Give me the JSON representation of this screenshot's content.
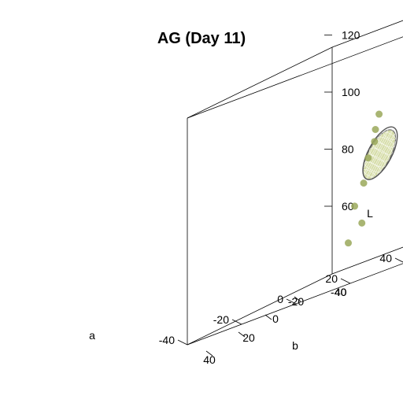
{
  "chart_data": {
    "type": "scatter",
    "subtype": "3d-scatter-with-ellipsoid",
    "title": "AG (Day 11)",
    "axes": {
      "a": {
        "label": "a",
        "range": [
          -40,
          40
        ],
        "ticks": [
          -40,
          -20,
          0,
          20,
          40
        ],
        "tick_labels": [
          "-40",
          "-20",
          "0",
          "20",
          "40"
        ]
      },
      "b": {
        "label": "b",
        "range": [
          -40,
          40
        ],
        "ticks": [
          -20,
          0,
          20,
          40
        ],
        "tick_labels": [
          "-20",
          "0",
          "20",
          "40"
        ],
        "corner_label": "-40"
      },
      "L": {
        "label": "L",
        "range": [
          40,
          120
        ],
        "ticks": [
          60,
          80,
          100,
          120
        ],
        "tick_labels": [
          "60",
          "80",
          "100",
          "120"
        ],
        "corner_label": "40"
      }
    },
    "series": [
      {
        "points": [
          {
            "a": -2,
            "b": -2,
            "L": 52
          },
          {
            "a": 1,
            "b": 1,
            "L": 57
          },
          {
            "a": -1,
            "b": 0,
            "L": 64
          },
          {
            "a": 3,
            "b": -1,
            "L": 71
          },
          {
            "a": 2,
            "b": 3,
            "L": 79
          },
          {
            "a": 5,
            "b": 2,
            "L": 84
          },
          {
            "a": 4,
            "b": 4,
            "L": 88
          },
          {
            "a": 6,
            "b": 3,
            "L": 93
          }
        ],
        "color": "#9aa85a"
      }
    ],
    "ellipsoid": {
      "center": {
        "a": 3,
        "b": 2,
        "L": 79
      },
      "fill": "#c8d28c",
      "edge": "#707070"
    },
    "grid": false,
    "box": true
  }
}
